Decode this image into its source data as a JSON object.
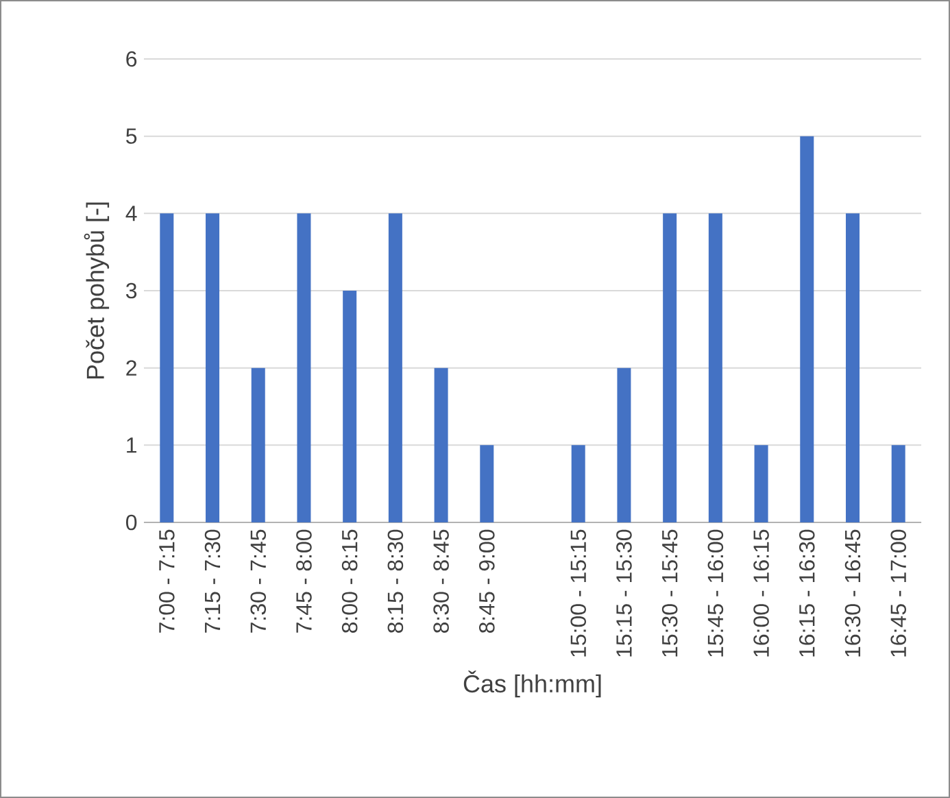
{
  "chart_data": {
    "type": "bar",
    "xlabel": "Čas [hh:mm]",
    "ylabel": "Počet pohybů [-]",
    "categories": [
      "7:00 - 7:15",
      "7:15 - 7:30",
      "7:30 - 7:45",
      "7:45 - 8:00",
      "8:00 - 8:15",
      "8:15 - 8:30",
      "8:30 - 8:45",
      "8:45 - 9:00",
      null,
      "15:00 - 15:15",
      "15:15 - 15:30",
      "15:30 - 15:45",
      "15:45 - 16:00",
      "16:00 - 16:15",
      "16:15 - 16:30",
      "16:30 - 16:45",
      "16:45 - 17:00"
    ],
    "values": [
      4,
      4,
      2,
      4,
      3,
      4,
      2,
      1,
      null,
      1,
      2,
      4,
      4,
      1,
      5,
      4,
      1
    ],
    "color": "#4472c4",
    "ylim": [
      0,
      6
    ],
    "yticks": [
      0,
      1,
      2,
      3,
      4,
      5,
      6
    ],
    "grid": "y"
  }
}
